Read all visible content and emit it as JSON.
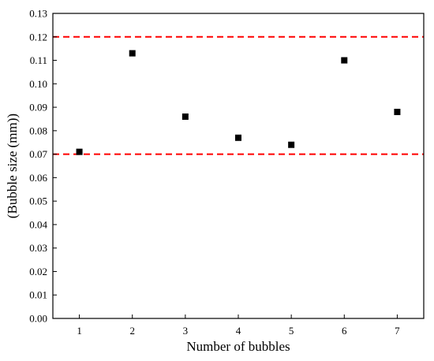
{
  "chart_data": {
    "type": "scatter",
    "title": "",
    "xlabel": "Number of bubbles",
    "ylabel": "(Bubble size (mm))",
    "x_ticks": [
      "1",
      "2",
      "3",
      "4",
      "5",
      "6",
      "7"
    ],
    "y_ticks": [
      "0.00",
      "0.01",
      "0.02",
      "0.03",
      "0.04",
      "0.05",
      "0.06",
      "0.07",
      "0.08",
      "0.09",
      "0.10",
      "0.11",
      "0.12",
      "0.13"
    ],
    "xlim": [
      0.5,
      7.5
    ],
    "ylim": [
      0,
      0.13
    ],
    "grid": false,
    "legend": "none",
    "series": [
      {
        "marker": "square",
        "color": "#000000",
        "points": [
          {
            "x": 1,
            "y": 0.071
          },
          {
            "x": 2,
            "y": 0.113
          },
          {
            "x": 3,
            "y": 0.086
          },
          {
            "x": 4,
            "y": 0.077
          },
          {
            "x": 5,
            "y": 0.074
          },
          {
            "x": 6,
            "y": 0.11
          },
          {
            "x": 7,
            "y": 0.088
          }
        ]
      }
    ],
    "reference_lines": [
      {
        "orientation": "horizontal",
        "y": 0.12,
        "style": "dashed",
        "color": "#ff0000"
      },
      {
        "orientation": "horizontal",
        "y": 0.07,
        "style": "dashed",
        "color": "#ff0000"
      }
    ]
  }
}
